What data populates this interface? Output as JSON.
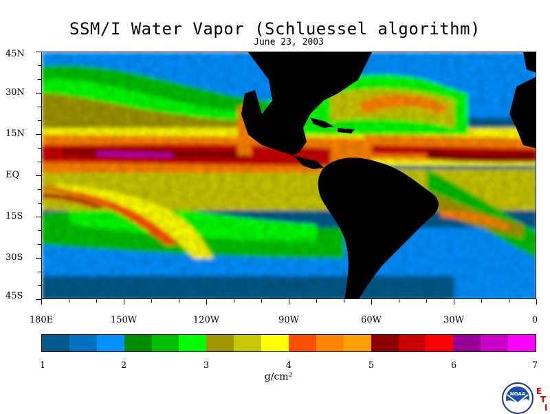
{
  "title": "SSM/I Water Vapor (Schluessel algorithm)",
  "subtitle": "June 23, 2003",
  "map": {
    "projection": "equirectangular",
    "lon_range": [
      -180,
      0
    ],
    "lat_range": [
      -45,
      45
    ],
    "land_color": "#000000"
  },
  "lat_labels": [
    {
      "text": "45N",
      "lat": 45
    },
    {
      "text": "30N",
      "lat": 30
    },
    {
      "text": "15N",
      "lat": 15
    },
    {
      "text": "EQ",
      "lat": 0
    },
    {
      "text": "15S",
      "lat": -15
    },
    {
      "text": "30S",
      "lat": -30
    },
    {
      "text": "45S",
      "lat": -45
    }
  ],
  "lon_labels": [
    {
      "text": "180E",
      "lon": -180
    },
    {
      "text": "150W",
      "lon": -150
    },
    {
      "text": "120W",
      "lon": -120
    },
    {
      "text": "90W",
      "lon": -90
    },
    {
      "text": "60W",
      "lon": -60
    },
    {
      "text": "30W",
      "lon": -30
    },
    {
      "text": "0",
      "lon": 0
    }
  ],
  "colorbar": {
    "min": 1,
    "max": 7,
    "labels": [
      "1",
      "2",
      "3",
      "4",
      "5",
      "6",
      "7"
    ],
    "units": "g/cm²",
    "colors": [
      "#005a8c",
      "#0072c0",
      "#0090ff",
      "#008c00",
      "#00c000",
      "#00ff00",
      "#a09600",
      "#c8c800",
      "#ffff00",
      "#ff5000",
      "#ff8200",
      "#ffa000",
      "#8c0000",
      "#c80000",
      "#ff0000",
      "#960096",
      "#c800c8",
      "#ff00ff"
    ]
  },
  "logo": {
    "icon": "noaa-logo-icon",
    "text": "NOAA",
    "mark_letters": [
      "E",
      "T",
      "I"
    ]
  }
}
